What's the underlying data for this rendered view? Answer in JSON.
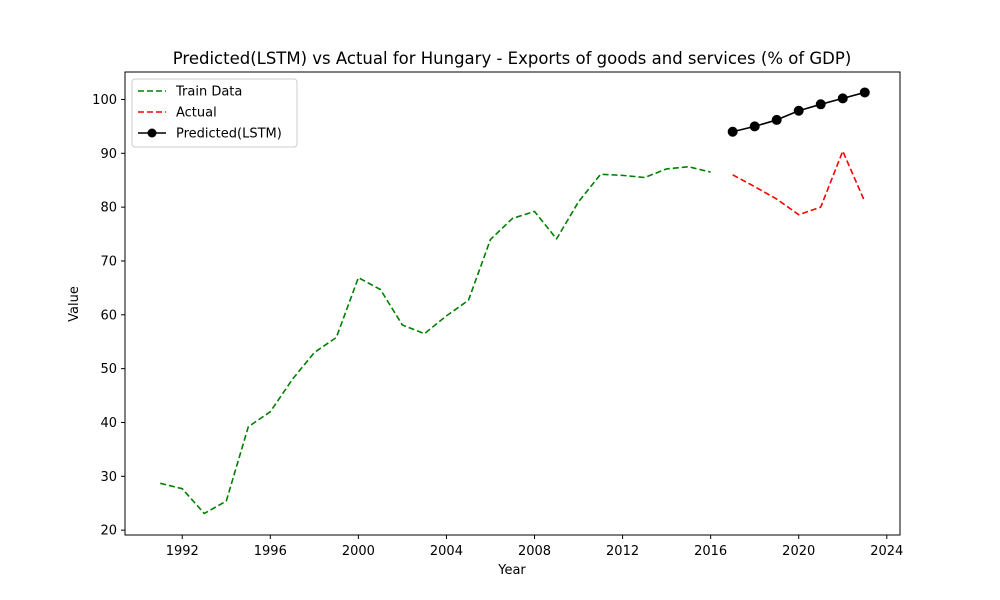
{
  "chart_data": {
    "type": "line",
    "title": "Predicted(LSTM) vs Actual for Hungary - Exports of goods and services (% of GDP)",
    "xlabel": "Year",
    "ylabel": "Value",
    "xlim": [
      1989.4,
      2024.6
    ],
    "ylim": [
      19.1,
      105.1
    ],
    "xticks": [
      1992,
      1996,
      2000,
      2004,
      2008,
      2012,
      2016,
      2020,
      2024
    ],
    "yticks": [
      20,
      30,
      40,
      50,
      60,
      70,
      80,
      90,
      100
    ],
    "grid": false,
    "legend_position": "top-left",
    "series": [
      {
        "name": "Train Data",
        "color": "#008000",
        "style": "dashed",
        "marker": "none",
        "x": [
          1991,
          1992,
          1993,
          1994,
          1995,
          1996,
          1997,
          1998,
          1999,
          2000,
          2001,
          2002,
          2003,
          2004,
          2005,
          2006,
          2007,
          2008,
          2009,
          2010,
          2011,
          2012,
          2013,
          2014,
          2015,
          2016
        ],
        "values": [
          28.7,
          27.7,
          23.1,
          25.4,
          39.2,
          42.0,
          48.0,
          53.0,
          55.8,
          66.9,
          64.7,
          58.1,
          56.5,
          59.8,
          62.7,
          74.0,
          77.9,
          79.2,
          74.1,
          81.0,
          86.1,
          85.9,
          85.5,
          87.1,
          87.5,
          86.5
        ]
      },
      {
        "name": "Actual",
        "color": "#ff0000",
        "style": "dashed",
        "marker": "none",
        "x": [
          2017,
          2018,
          2019,
          2020,
          2021,
          2022,
          2023
        ],
        "values": [
          86.0,
          83.8,
          81.5,
          78.6,
          80.0,
          90.4,
          81.0
        ]
      },
      {
        "name": "Predicted(LSTM)",
        "color": "#000000",
        "style": "solid",
        "marker": "circle",
        "x": [
          2017,
          2018,
          2019,
          2020,
          2021,
          2022,
          2023
        ],
        "values": [
          94.0,
          95.0,
          96.2,
          97.9,
          99.1,
          100.2,
          101.3
        ]
      }
    ]
  }
}
